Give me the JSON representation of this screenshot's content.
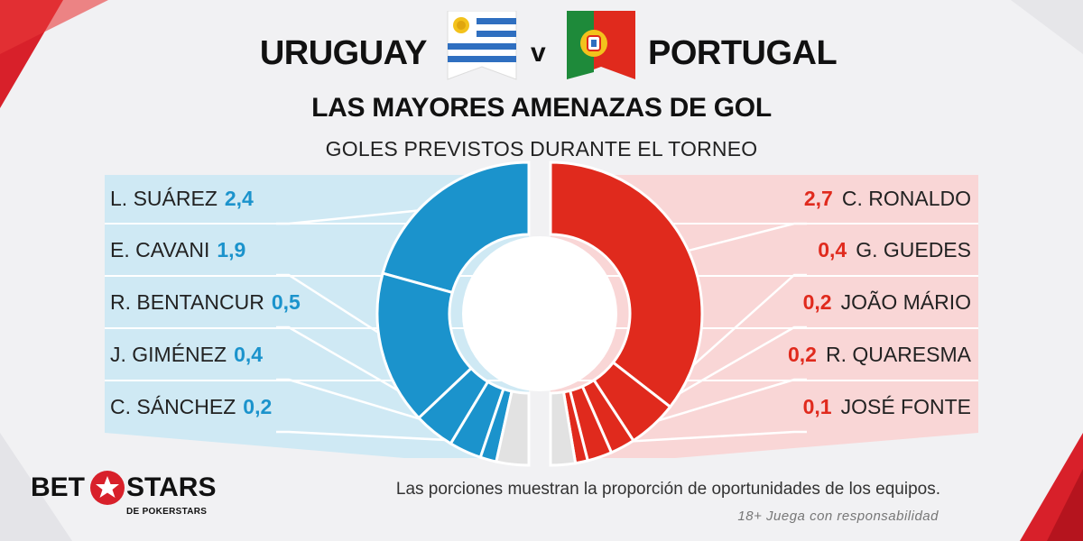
{
  "header": {
    "team1": "URUGUAY",
    "versus": "v",
    "team2": "PORTUGAL",
    "title": "LAS MAYORES AMENAZAS DE GOL",
    "subtitle": "GOLES PREVISTOS DURANTE EL TORNEO"
  },
  "colors": {
    "uruguay": "#1b93cc",
    "uruguay_panel": "#cfe9f4",
    "portugal": "#e02a1d",
    "portugal_panel": "#f9d6d6",
    "other": "#e2e2e2"
  },
  "chart_data": [
    {
      "type": "pie",
      "title": "URUGUAY",
      "series": [
        {
          "name": "L. SUÁREZ",
          "label": "2,4",
          "value": 2.4
        },
        {
          "name": "E. CAVANI",
          "label": "1,9",
          "value": 1.9
        },
        {
          "name": "R. BENTANCUR",
          "label": "0,5",
          "value": 0.5
        },
        {
          "name": "J. GIMÉNEZ",
          "label": "0,4",
          "value": 0.4
        },
        {
          "name": "C. SÁNCHEZ",
          "label": "0,2",
          "value": 0.2
        }
      ],
      "remainder": 0.4
    },
    {
      "type": "pie",
      "title": "PORTUGAL",
      "series": [
        {
          "name": "C. RONALDO",
          "label": "2,7",
          "value": 2.7
        },
        {
          "name": "G. GUEDES",
          "label": "0,4",
          "value": 0.4
        },
        {
          "name": "JOÃO MÁRIO",
          "label": "0,2",
          "value": 0.2
        },
        {
          "name": "R. QUARESMA",
          "label": "0,2",
          "value": 0.2
        },
        {
          "name": "JOSÉ FONTE",
          "label": "0,1",
          "value": 0.1
        }
      ],
      "remainder": 0.2
    }
  ],
  "footer": {
    "note": "Las porciones muestran la proporción de oportunidades de los equipos.",
    "disclaimer": "18+ Juega con responsabilidad"
  },
  "logo": {
    "bet": "BET",
    "stars": "STARS",
    "sub": "DE POKERSTARS"
  }
}
